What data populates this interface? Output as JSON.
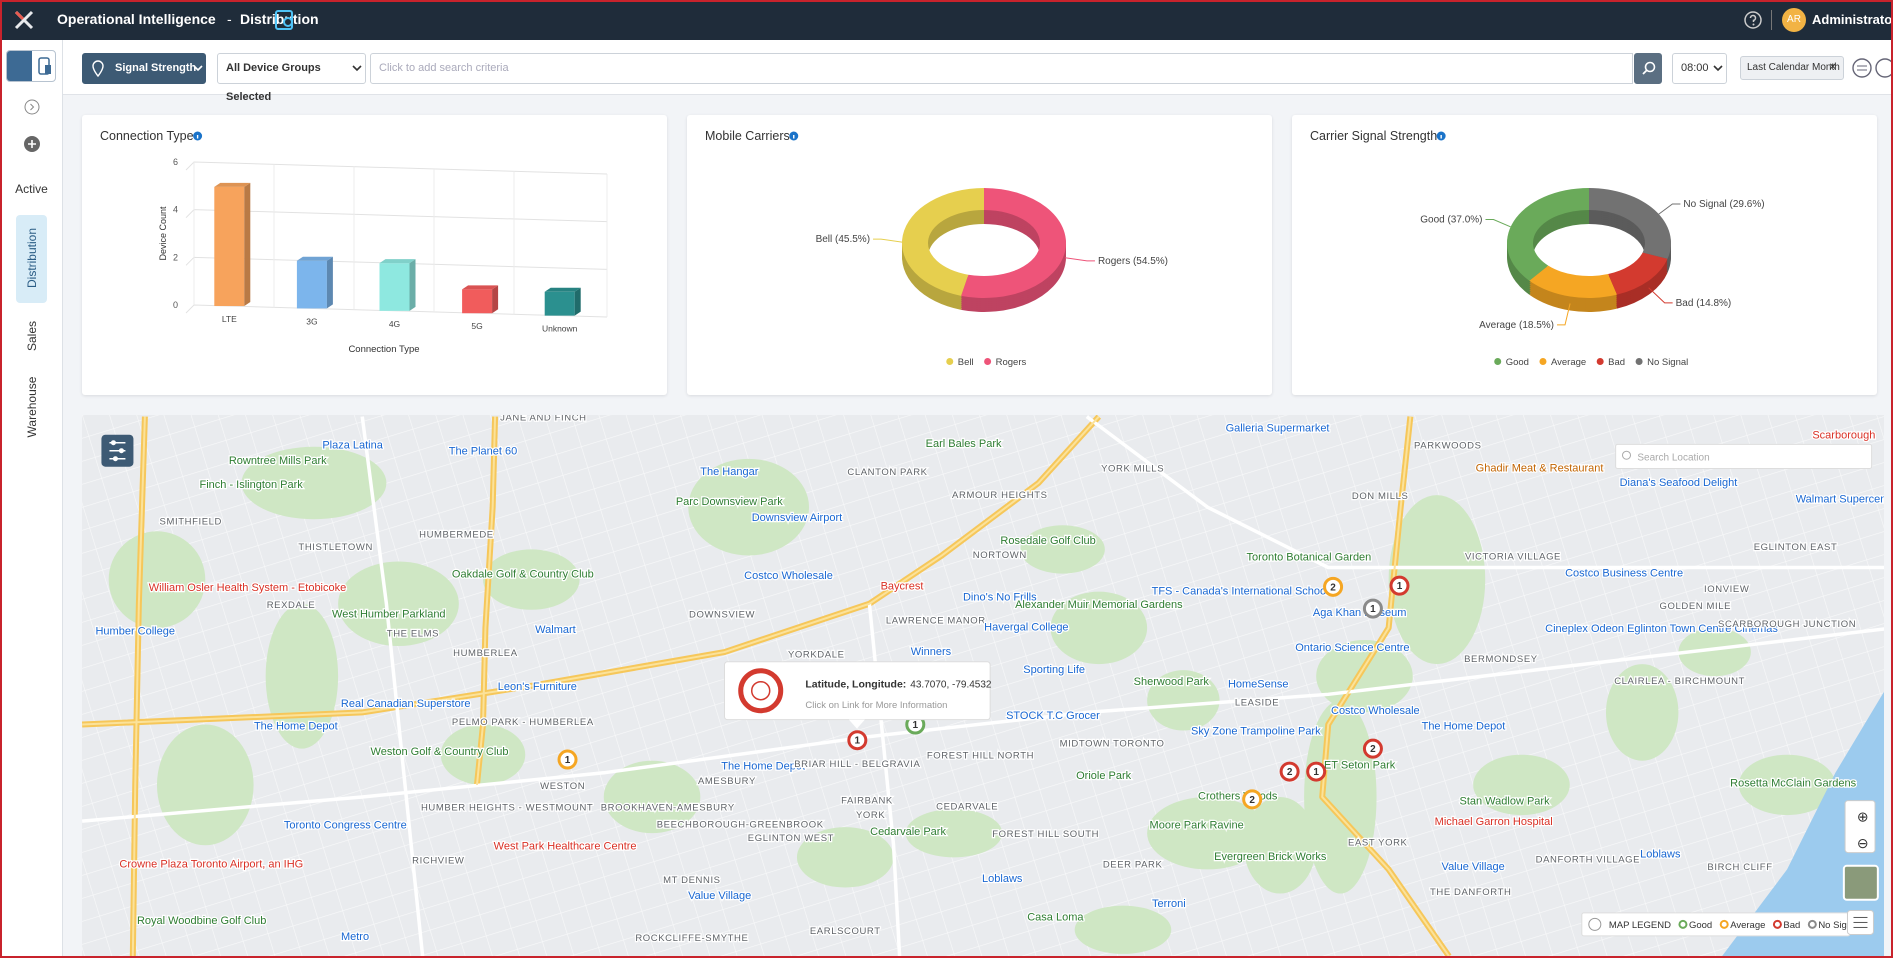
{
  "header": {
    "title": "Operational Intelligence",
    "separator": "-",
    "page": "Distribution",
    "initials": "AR",
    "user": "Administrator"
  },
  "sidebar": {
    "items": [
      "Active",
      "Distribution",
      "Sales",
      "Warehouse"
    ]
  },
  "toolbar": {
    "metric": "Signal Strength",
    "groups": "All Device Groups Selected",
    "search": "Click to add search criteria",
    "time": "08:00",
    "range": "Last Calendar Month"
  },
  "chart_data": [
    {
      "type": "bar",
      "title": "Connection Type",
      "xlabel": "Connection Type",
      "ylabel": "Device Count",
      "categories": [
        "LTE",
        "3G",
        "4G",
        "5G",
        "Unknown"
      ],
      "values": [
        5,
        2,
        2,
        1,
        1
      ],
      "colors": [
        "#f7a35c",
        "#7cb5ec",
        "#8ee8e0",
        "#f15c5c",
        "#2b908f"
      ],
      "ylim": [
        0,
        6
      ],
      "yticks": [
        0,
        2,
        4,
        6
      ],
      "grid": true
    },
    {
      "type": "pie",
      "title": "Mobile Carriers",
      "categories": [
        "Bell",
        "Rogers"
      ],
      "values": [
        45.5,
        54.5
      ],
      "value_labels": [
        "Bell (45.5%)",
        "Rogers (54.5%)"
      ],
      "colors": [
        "#e6cf4e",
        "#ee5479"
      ]
    },
    {
      "type": "pie",
      "title": "Carrier Signal Strength",
      "categories": [
        "Good",
        "Average",
        "Bad",
        "No Signal"
      ],
      "values": [
        37.0,
        18.5,
        14.8,
        29.6
      ],
      "value_labels": [
        "Good (37.0%)",
        "Average (18.5%)",
        "Bad (14.8%)",
        "No Signal (29.6%)"
      ],
      "colors": [
        "#6aaa5a",
        "#f5a623",
        "#d33a2f",
        "#727272"
      ]
    }
  ],
  "map": {
    "search": "Search Location",
    "places": [
      {
        "name": "JANE AND FINCH",
        "kind": "a"
      },
      {
        "name": "Plaza Latina",
        "kind": "s"
      },
      {
        "name": "The Planet 60",
        "kind": "s"
      },
      {
        "name": "Rowntree Mills Park",
        "kind": "p"
      },
      {
        "name": "Finch - Islington Park",
        "kind": "p"
      },
      {
        "name": "SMITHFIELD",
        "kind": "a"
      },
      {
        "name": "HUMBERMEDE",
        "kind": "a"
      },
      {
        "name": "THISTLETOWN",
        "kind": "a"
      },
      {
        "name": "William Osler Health System - Etobicoke",
        "kind": "h"
      },
      {
        "name": "REXDALE",
        "kind": "a"
      },
      {
        "name": "Oakdale Golf & Country Club",
        "kind": "p"
      },
      {
        "name": "West Humber Parkland",
        "kind": "p"
      },
      {
        "name": "THE ELMS",
        "kind": "a"
      },
      {
        "name": "HUMBERLEA",
        "kind": "a"
      },
      {
        "name": "Humber College",
        "kind": "s"
      },
      {
        "name": "DOWNSVIEW",
        "kind": "a"
      },
      {
        "name": "Costco Wholesale",
        "kind": "s"
      },
      {
        "name": "YORKDALE",
        "kind": "a"
      },
      {
        "name": "Downsview Airport",
        "kind": "s"
      },
      {
        "name": "Parc Downsview Park",
        "kind": "p"
      },
      {
        "name": "The Hangar",
        "kind": "s"
      },
      {
        "name": "CLANTON PARK",
        "kind": "a"
      },
      {
        "name": "Earl Bales Park",
        "kind": "p"
      },
      {
        "name": "ARMOUR HEIGHTS",
        "kind": "a"
      },
      {
        "name": "YORK MILLS",
        "kind": "a"
      },
      {
        "name": "NORTOWN",
        "kind": "a"
      },
      {
        "name": "Rosedale Golf Club",
        "kind": "p"
      },
      {
        "name": "Baycrest",
        "kind": "h"
      },
      {
        "name": "Dino's No Frills",
        "kind": "s"
      },
      {
        "name": "LAWRENCE MANOR",
        "kind": "a"
      },
      {
        "name": "Havergal College",
        "kind": "s"
      },
      {
        "name": "Alexander Muir Memorial Gardens",
        "kind": "p"
      },
      {
        "name": "Winners",
        "kind": "s"
      },
      {
        "name": "Sporting Life",
        "kind": "s"
      },
      {
        "name": "Sherwood Park",
        "kind": "p"
      },
      {
        "name": "STOCK T.C Grocer",
        "kind": "s"
      },
      {
        "name": "FOREST HILL NORTH",
        "kind": "a"
      },
      {
        "name": "MIDTOWN TORONTO",
        "kind": "a"
      },
      {
        "name": "Oriole Park",
        "kind": "p"
      },
      {
        "name": "CEDARVALE",
        "kind": "a"
      },
      {
        "name": "FAIRBANK",
        "kind": "a"
      },
      {
        "name": "YORK",
        "kind": "a"
      },
      {
        "name": "Cedarvale Park",
        "kind": "p"
      },
      {
        "name": "FOREST HILL SOUTH",
        "kind": "a"
      },
      {
        "name": "Moore Park Ravine",
        "kind": "p"
      },
      {
        "name": "DEER PARK",
        "kind": "a"
      },
      {
        "name": "Loblaws",
        "kind": "s"
      },
      {
        "name": "Casa Loma",
        "kind": "p"
      },
      {
        "name": "Terroni",
        "kind": "s"
      },
      {
        "name": "EARLSCOURT",
        "kind": "a"
      },
      {
        "name": "ROCKCLIFFE-SMYTHE",
        "kind": "a"
      },
      {
        "name": "MT DENNIS",
        "kind": "a"
      },
      {
        "name": "Value Village",
        "kind": "s"
      },
      {
        "name": "WESTON",
        "kind": "a"
      },
      {
        "name": "HUMBER HEIGHTS - WESTMOUNT",
        "kind": "a"
      },
      {
        "name": "RICHVIEW",
        "kind": "a"
      },
      {
        "name": "West Park Healthcare Centre",
        "kind": "h"
      },
      {
        "name": "BROOKHAVEN-AMESBURY",
        "kind": "a"
      },
      {
        "name": "BEECHBOROUGH-GREENBROOK",
        "kind": "a"
      },
      {
        "name": "EGLINTON WEST",
        "kind": "a"
      },
      {
        "name": "AMESBURY",
        "kind": "a"
      },
      {
        "name": "The Home Depot",
        "kind": "s"
      },
      {
        "name": "BRIAR HILL - BELGRAVIA",
        "kind": "a"
      },
      {
        "name": "PELMO PARK - HUMBERLEA",
        "kind": "a"
      },
      {
        "name": "Leon's Furniture",
        "kind": "s"
      },
      {
        "name": "Real Canadian Superstore",
        "kind": "s"
      },
      {
        "name": "The Home Depot",
        "kind": "s"
      },
      {
        "name": "Weston Golf & Country Club",
        "kind": "p"
      },
      {
        "name": "Toronto Congress Centre",
        "kind": "s"
      },
      {
        "name": "Crowne Plaza Toronto Airport, an IHG",
        "kind": "h"
      },
      {
        "name": "Royal Woodbine Golf Club",
        "kind": "p"
      },
      {
        "name": "Metro",
        "kind": "s"
      },
      {
        "name": "Toronto Botanical Garden",
        "kind": "p"
      },
      {
        "name": "TFS - Canada's International School",
        "kind": "s"
      },
      {
        "name": "DON MILLS",
        "kind": "a"
      },
      {
        "name": "PARKWOODS",
        "kind": "a"
      },
      {
        "name": "Ghadir Meat & Restaurant",
        "kind": "o"
      },
      {
        "name": "Diana's Seafood Delight",
        "kind": "s"
      },
      {
        "name": "Walmart Supercentre",
        "kind": "s"
      },
      {
        "name": "VICTORIA VILLAGE",
        "kind": "a"
      },
      {
        "name": "EGLINTON EAST",
        "kind": "a"
      },
      {
        "name": "Costco Business Centre",
        "kind": "s"
      },
      {
        "name": "IONVIEW",
        "kind": "a"
      },
      {
        "name": "GOLDEN MILE",
        "kind": "a"
      },
      {
        "name": "Cineplex Odeon Eglinton Town Centre Cinemas",
        "kind": "s"
      },
      {
        "name": "BERMONDSEY",
        "kind": "a"
      },
      {
        "name": "Ontario Science Centre",
        "kind": "s"
      },
      {
        "name": "HomeSense",
        "kind": "s"
      },
      {
        "name": "LEASIDE",
        "kind": "a"
      },
      {
        "name": "Costco Wholesale",
        "kind": "s"
      },
      {
        "name": "Sky Zone Trampoline Park",
        "kind": "s"
      },
      {
        "name": "The Home Depot",
        "kind": "s"
      },
      {
        "name": "CLAIRLEA - BIRCHMOUNT",
        "kind": "a"
      },
      {
        "name": "ET Seton Park",
        "kind": "p"
      },
      {
        "name": "Crothers Woods",
        "kind": "p"
      },
      {
        "name": "Stan Wadlow Park",
        "kind": "p"
      },
      {
        "name": "Michael Garron Hospital",
        "kind": "h"
      },
      {
        "name": "EAST YORK",
        "kind": "a"
      },
      {
        "name": "Evergreen Brick Works",
        "kind": "p"
      },
      {
        "name": "Value Village",
        "kind": "s"
      },
      {
        "name": "THE DANFORTH",
        "kind": "a"
      },
      {
        "name": "DANFORTH VILLAGE",
        "kind": "a"
      },
      {
        "name": "BIRCH CLIFF",
        "kind": "a"
      },
      {
        "name": "Loblaws",
        "kind": "s"
      },
      {
        "name": "Rosetta McClain Gardens",
        "kind": "p"
      },
      {
        "name": "Scarborough",
        "kind": "h"
      },
      {
        "name": "SCARBOROUGH JUNCTION",
        "kind": "a"
      },
      {
        "name": "Aga Khan Museum",
        "kind": "s"
      },
      {
        "name": "Galleria Supermarket",
        "kind": "s"
      },
      {
        "name": "Walmart",
        "kind": "s"
      }
    ],
    "markers": [
      {
        "count": 2,
        "color": "#f5a623"
      },
      {
        "count": 1,
        "color": "#8a8a8a"
      },
      {
        "count": 1,
        "color": "#d33a2f"
      },
      {
        "count": 1,
        "color": "#d33a2f"
      },
      {
        "count": 2,
        "color": "#d33a2f"
      },
      {
        "count": 2,
        "color": "#d33a2f"
      },
      {
        "count": 1,
        "color": "#d33a2f"
      },
      {
        "count": 2,
        "color": "#f5a623"
      },
      {
        "count": 1,
        "color": "#f5a623"
      },
      {
        "count": 1,
        "color": "#6aaa5a"
      }
    ],
    "popup": {
      "title": "Latitude, Longitude:",
      "coords": "43.7070, -79.4532",
      "hint": "Click on Link for More Information"
    },
    "legend": {
      "title": "MAP LEGEND",
      "items": [
        "Good",
        "Average",
        "Bad",
        "No Signal"
      ],
      "colors": [
        "#6aaa5a",
        "#f5a623",
        "#d33a2f",
        "#8a8a8a"
      ]
    }
  }
}
